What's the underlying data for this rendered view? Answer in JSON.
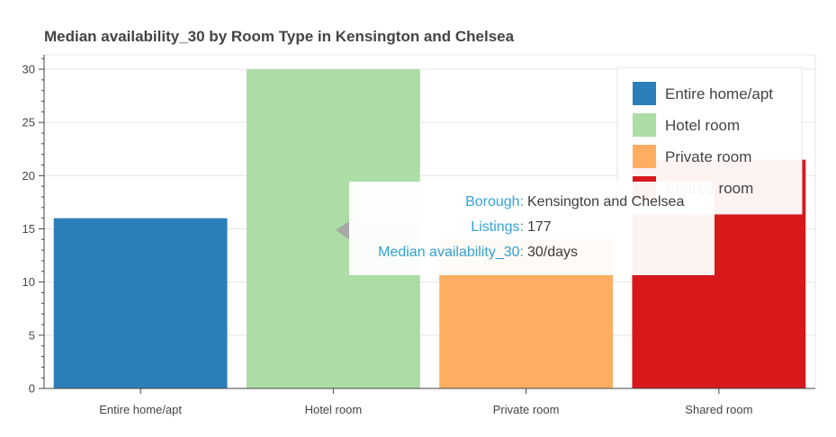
{
  "chart_data": {
    "type": "bar",
    "title": "Median availability_30 by Room Type in Kensington and Chelsea",
    "categories": [
      "Entire home/apt",
      "Hotel room",
      "Private room",
      "Shared room"
    ],
    "values": [
      16,
      30,
      14,
      21.5
    ],
    "colors": [
      "#2b7fb8",
      "#abdda4",
      "#fdae61",
      "#d7191c"
    ],
    "ylim": [
      0,
      31
    ],
    "yticks": [
      0,
      5,
      10,
      15,
      20,
      25,
      30
    ],
    "grid": true,
    "legend": {
      "position": "top-right",
      "entries": [
        "Entire home/apt",
        "Hotel room",
        "Private room",
        "Shared room"
      ]
    }
  },
  "tooltip": {
    "rows": [
      {
        "key": "Borough:",
        "value": "Kensington and Chelsea"
      },
      {
        "key": "Listings:",
        "value": "177"
      },
      {
        "key": "Median availability_30:",
        "value": "30/days"
      }
    ]
  }
}
